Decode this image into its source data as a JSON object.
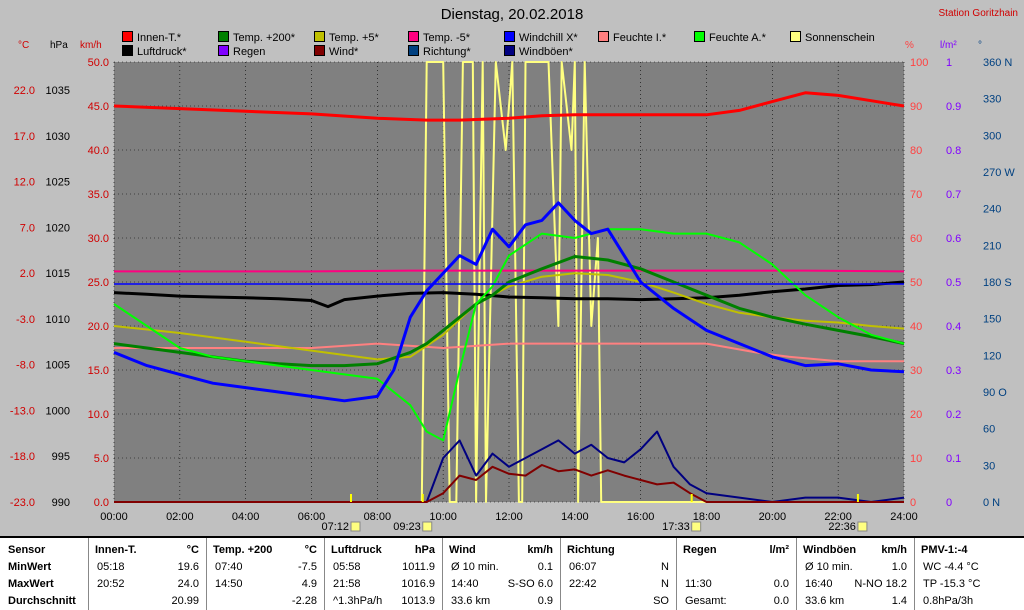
{
  "title": "Dienstag, 20.02.2018",
  "station": "Station Goritzhain",
  "units": {
    "temp": "°C",
    "press": "hPa",
    "wind": "km/h",
    "pct": "%",
    "rain": "l/m²",
    "dir": "°"
  },
  "legend": [
    {
      "label": "Innen-T.*",
      "color": "#ff0000"
    },
    {
      "label": "Temp. +200*",
      "color": "#008000"
    },
    {
      "label": "Temp. +5*",
      "color": "#c0c000"
    },
    {
      "label": "Temp. -5*",
      "color": "#ff0080"
    },
    {
      "label": "Windchill X*",
      "color": "#0000ff"
    },
    {
      "label": "Feuchte I.*",
      "color": "#ff8080"
    },
    {
      "label": "Feuchte A.*",
      "color": "#00ff00"
    },
    {
      "label": "Sonnenschein",
      "color": "#ffff80"
    },
    {
      "label": "Luftdruck*",
      "color": "#000000"
    },
    {
      "label": "Regen",
      "color": "#8000ff"
    },
    {
      "label": "Wind*",
      "color": "#800000"
    },
    {
      "label": "Richtung*",
      "color": "#004080"
    },
    {
      "label": "Windböen*",
      "color": "#000080"
    }
  ],
  "chart_data": {
    "type": "line",
    "title": "Dienstag, 20.02.2018",
    "x_ticks": [
      "00:00",
      "02:00",
      "04:00",
      "06:00",
      "08:00",
      "10:00",
      "12:00",
      "14:00",
      "16:00",
      "18:00",
      "20:00",
      "22:00",
      "24:00"
    ],
    "axes": {
      "temp_ticks": [
        "22.0",
        "17.0",
        "12.0",
        "7.0",
        "2.0",
        "-3.0",
        "-8.0",
        "-13.0",
        "-18.0",
        "-23.0"
      ],
      "press_ticks": [
        "1035",
        "1030",
        "1025",
        "1020",
        "1015",
        "1010",
        "1005",
        "1000",
        "995",
        "990"
      ],
      "wind_ticks": [
        "50.0",
        "45.0",
        "40.0",
        "35.0",
        "30.0",
        "25.0",
        "20.0",
        "15.0",
        "10.0",
        "5.0",
        "0.0"
      ],
      "pct_ticks": [
        "100",
        "90",
        "80",
        "70",
        "60",
        "50",
        "40",
        "30",
        "20",
        "10",
        "0"
      ],
      "rain_ticks": [
        "1",
        "0.9",
        "0.8",
        "0.7",
        "0.6",
        "0.5",
        "0.4",
        "0.3",
        "0.2",
        "0.1",
        "0"
      ],
      "dir_ticks": [
        "360 N",
        "330",
        "300",
        "270 W",
        "240",
        "210",
        "180 S",
        "150",
        "120",
        "90 O",
        "60",
        "30",
        "0 N"
      ]
    },
    "markers": [
      {
        "label": "07:12",
        "hour": 7.2
      },
      {
        "label": "09:23",
        "hour": 9.38
      },
      {
        "label": "17:33",
        "hour": 17.55
      },
      {
        "label": "22:36",
        "hour": 22.6
      }
    ],
    "series": [
      {
        "name": "Innen-T.*",
        "axis": "temp",
        "color": "#ff0000",
        "x": [
          0,
          2,
          4,
          6,
          8,
          9.5,
          10.5,
          12,
          13,
          14,
          15,
          16,
          17,
          18,
          19,
          20,
          21,
          22,
          23,
          24
        ],
        "y": [
          22,
          21.7,
          21.4,
          21.1,
          20.6,
          20.4,
          20.4,
          20.6,
          20.9,
          21,
          21,
          21,
          21,
          21,
          21.5,
          22.5,
          23.5,
          23.2,
          22.6,
          22
        ]
      },
      {
        "name": "Temp. +200*",
        "axis": "temp",
        "color": "#008000",
        "x": [
          0,
          1,
          2,
          3,
          4,
          5,
          6,
          7,
          8,
          9,
          9.5,
          10,
          10.5,
          11,
          11.5,
          12,
          13,
          14,
          15,
          16,
          17,
          18,
          19,
          20,
          21,
          22,
          23,
          24
        ],
        "y": [
          -5,
          -5.5,
          -6,
          -6.5,
          -7,
          -7.3,
          -7.5,
          -7.5,
          -7.3,
          -6,
          -5,
          -3.5,
          -2,
          -0.5,
          0.5,
          2,
          3.5,
          4.9,
          4.5,
          3.5,
          2,
          0.5,
          -1,
          -2,
          -2.8,
          -3.5,
          -4.2,
          -5
        ]
      },
      {
        "name": "Temp. +5*",
        "axis": "temp",
        "color": "#c0c000",
        "x": [
          0,
          2,
          4,
          6,
          8,
          9,
          10,
          11,
          12,
          13,
          14,
          15,
          16,
          17,
          18,
          19,
          20,
          21,
          22,
          23,
          24
        ],
        "y": [
          -3,
          -3.8,
          -4.8,
          -5.8,
          -6.8,
          -6.5,
          -4,
          -0.5,
          1.5,
          2.6,
          3,
          2.8,
          2,
          0.8,
          -0.5,
          -1.5,
          -2,
          -2.4,
          -2.6,
          -3,
          -3.3
        ]
      },
      {
        "name": "Temp. -5*",
        "axis": "temp",
        "color": "#ff0080",
        "x": [
          0,
          3,
          6,
          9,
          12,
          15,
          18,
          21,
          24
        ],
        "y": [
          3.2,
          3.2,
          3.2,
          3.3,
          3.3,
          3.3,
          3.3,
          3.3,
          3.2
        ]
      },
      {
        "name": "Windchill X*",
        "axis": "temp",
        "color": "#0000ff",
        "x": [
          0,
          1,
          2,
          3,
          4,
          5,
          6,
          7,
          8,
          8.5,
          9,
          9.5,
          10,
          10.5,
          11,
          11.5,
          12,
          12.5,
          13,
          13.5,
          14,
          14.5,
          15,
          15.5,
          16,
          17,
          18,
          19,
          20,
          21,
          22,
          23,
          24
        ],
        "y": [
          -6,
          -7.5,
          -8.5,
          -9.5,
          -10,
          -10.5,
          -11,
          -11.5,
          -11,
          -8,
          -2,
          1,
          3,
          5,
          4,
          8,
          6,
          8.5,
          9,
          11,
          9,
          7.5,
          8,
          5,
          2,
          -1,
          -3.5,
          -5,
          -6.5,
          -7.5,
          -7.3,
          -8,
          -8.2
        ]
      },
      {
        "name": "Luftdruck*",
        "axis": "press",
        "color": "#000000",
        "x": [
          0,
          1,
          2,
          3,
          4,
          5,
          6,
          6.5,
          7,
          8,
          9,
          10,
          11,
          12,
          13,
          14,
          15,
          16,
          17,
          18,
          19,
          20,
          21,
          22,
          23,
          24
        ],
        "y": [
          1013.8,
          1013.6,
          1013.4,
          1013.3,
          1013.2,
          1013.1,
          1012.9,
          1012.2,
          1013,
          1013.4,
          1013.7,
          1013.8,
          1013.6,
          1013.3,
          1013.2,
          1013.1,
          1013.1,
          1013,
          1013.1,
          1013.2,
          1013.5,
          1013.9,
          1014.2,
          1014.6,
          1014.7,
          1015
        ]
      },
      {
        "name": "Feuchte A.*",
        "axis": "pct",
        "color": "#00ff00",
        "x": [
          0,
          1,
          2,
          3,
          4,
          5,
          6,
          7,
          8,
          9,
          9.5,
          10,
          10.5,
          11,
          11.5,
          12,
          13,
          14,
          15,
          16,
          17,
          18,
          19,
          20,
          21,
          22,
          23,
          24
        ],
        "y": [
          45,
          40,
          35,
          33,
          32,
          31,
          30,
          29,
          28,
          22,
          16,
          14,
          30,
          45,
          49,
          56,
          61,
          60,
          62,
          62,
          61,
          61,
          59,
          54,
          47,
          42,
          38,
          36
        ]
      },
      {
        "name": "Feuchte I.*",
        "axis": "pct",
        "color": "#ff8080",
        "x": [
          0,
          2,
          4,
          6,
          8,
          10,
          12,
          14,
          16,
          18,
          19.5,
          20.5,
          22,
          24
        ],
        "y": [
          35,
          35,
          35,
          35,
          36,
          35,
          36,
          36,
          36,
          36,
          34,
          33,
          32,
          32
        ]
      },
      {
        "name": "Wind*",
        "axis": "wind",
        "color": "#800000",
        "x": [
          0,
          9.5,
          10,
          10.5,
          11,
          11.5,
          12,
          12.5,
          13,
          13.5,
          14,
          14.5,
          15,
          15.5,
          16,
          16.5,
          17,
          17.5,
          18,
          24
        ],
        "y": [
          0,
          0,
          1,
          3,
          2.5,
          4,
          3.2,
          3,
          4.2,
          3.5,
          3.7,
          3,
          3.6,
          3,
          2.5,
          2,
          2.2,
          1,
          0,
          0
        ]
      },
      {
        "name": "Windböen*",
        "axis": "wind",
        "color": "#000080",
        "x": [
          0,
          9.5,
          10,
          10.5,
          11,
          11.5,
          12,
          12.5,
          13,
          13.5,
          14,
          14.5,
          15,
          15.5,
          16,
          16.5,
          17,
          17.5,
          18,
          19,
          20,
          21,
          22,
          23,
          24
        ],
        "y": [
          0,
          0,
          5,
          7,
          3,
          5.5,
          4,
          5,
          6,
          7,
          5.5,
          6.5,
          5,
          4.5,
          6,
          8,
          4,
          2,
          1,
          0.5,
          0,
          0.5,
          0.5,
          0,
          0.5
        ]
      },
      {
        "name": "Sonnenschein",
        "axis": "pct",
        "color": "#ffff80",
        "x": [
          0,
          9.35,
          9.5,
          10,
          10.2,
          10.4,
          10.6,
          10.9,
          11,
          11.2,
          11.3,
          11.6,
          11.9,
          12.1,
          12.3,
          12.4,
          12.5,
          13.2,
          13.5,
          13.6,
          13.9,
          14,
          14.1,
          14.3,
          14.5,
          14.7,
          14.8,
          15,
          24
        ],
        "y": [
          0,
          0,
          100,
          100,
          0,
          0,
          100,
          100,
          0,
          100,
          0,
          100,
          80,
          100,
          0,
          0,
          100,
          100,
          40,
          100,
          80,
          100,
          0,
          100,
          40,
          60,
          0,
          0,
          0
        ]
      }
    ]
  },
  "stats": {
    "row_labels": [
      "Sensor",
      "MinWert",
      "MaxWert",
      "Durchschnitt"
    ],
    "cols": [
      {
        "head": "Innen-T.",
        "unit": "°C",
        "rows": [
          [
            "05:18",
            "19.6"
          ],
          [
            "20:52",
            "24.0"
          ],
          [
            "",
            "20.99"
          ]
        ]
      },
      {
        "head": "Temp. +200",
        "unit": "°C",
        "rows": [
          [
            "07:40",
            "-7.5"
          ],
          [
            "14:50",
            "4.9"
          ],
          [
            "",
            "-2.28"
          ]
        ]
      },
      {
        "head": "Luftdruck",
        "unit": "hPa",
        "rows": [
          [
            "05:58",
            "1011.9"
          ],
          [
            "21:58",
            "1016.9"
          ],
          [
            "^1.3hPa/h",
            "1013.9"
          ]
        ]
      },
      {
        "head": "Wind",
        "unit": "km/h",
        "rows": [
          [
            "Ø 10 min.",
            "0.1"
          ],
          [
            "14:40",
            "S-SO 6.0"
          ],
          [
            "33.6 km",
            "0.9"
          ]
        ]
      },
      {
        "head": "Richtung",
        "unit": "",
        "rows": [
          [
            "06:07",
            "N"
          ],
          [
            "22:42",
            "N"
          ],
          [
            "",
            "SO"
          ]
        ]
      },
      {
        "head": "Regen",
        "unit": "l/m²",
        "rows": [
          [
            "",
            ""
          ],
          [
            "11:30",
            "0.0"
          ],
          [
            "Gesamt:",
            "0.0"
          ]
        ]
      },
      {
        "head": "Windböen",
        "unit": "km/h",
        "rows": [
          [
            "Ø 10 min.",
            "1.0"
          ],
          [
            "16:40",
            "N-NO 18.2"
          ],
          [
            "33.6 km",
            "1.4"
          ]
        ]
      },
      {
        "head": "PMV-1:-4",
        "unit": "",
        "rows": [
          [
            "WC -4.4 °C",
            ""
          ],
          [
            "TP -15.3 °C",
            ""
          ],
          [
            "0.8hPa/3h",
            ""
          ]
        ]
      }
    ]
  }
}
